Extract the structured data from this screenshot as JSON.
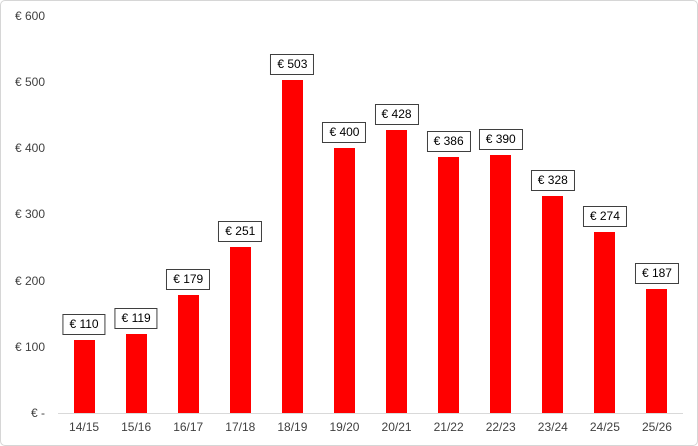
{
  "chart_data": {
    "type": "bar",
    "title": "",
    "xlabel": "",
    "ylabel": "",
    "categories": [
      "14/15",
      "15/16",
      "16/17",
      "17/18",
      "18/19",
      "19/20",
      "20/21",
      "21/22",
      "22/23",
      "23/24",
      "24/25",
      "25/26"
    ],
    "values": [
      110,
      119,
      179,
      251,
      503,
      400,
      428,
      386,
      390,
      328,
      274,
      187
    ],
    "value_labels": [
      "€ 110",
      "€ 119",
      "€ 179",
      "€ 251",
      "€ 503",
      "€ 400",
      "€ 428",
      "€ 386",
      "€ 390",
      "€ 328",
      "€ 274",
      "€ 187"
    ],
    "y_ticks": [
      {
        "value": 0,
        "label": "€ -"
      },
      {
        "value": 100,
        "label": "€ 100"
      },
      {
        "value": 200,
        "label": "€ 200"
      },
      {
        "value": 300,
        "label": "€ 300"
      },
      {
        "value": 400,
        "label": "€ 400"
      },
      {
        "value": 500,
        "label": "€ 500"
      },
      {
        "value": 600,
        "label": "€ 600"
      }
    ],
    "ylim": [
      0,
      600
    ],
    "grid": false,
    "legend": false,
    "colors": {
      "bar": "#ff0000",
      "label_box_border": "#3f3f3f",
      "label_box_fill": "#ffffff",
      "axis_line": "#d9d9d9",
      "text": "#404040"
    }
  }
}
